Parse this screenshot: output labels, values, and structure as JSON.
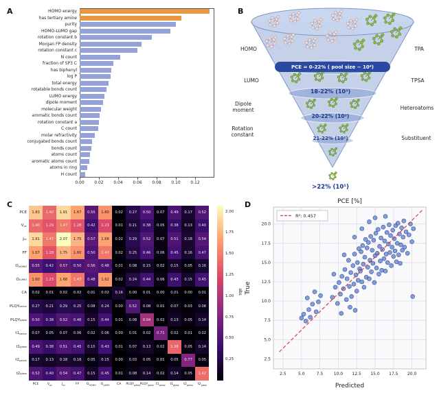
{
  "panels": {
    "a": "A",
    "b": "B",
    "c": "C",
    "d": "D"
  },
  "chart_data": [
    {
      "id": "feature-importance",
      "type": "bar",
      "orientation": "horizontal",
      "categories": [
        "HOMO energy",
        "has tertiary amine",
        "purity",
        "HOMO-LUMO gap",
        "rotation constant b",
        "Morgan FP density",
        "rotation constant c",
        "N count",
        "fraction of SP3 C",
        "has biphenyl",
        "log P",
        "total energy",
        "rotatable bonds count",
        "LUMO energy",
        "dipole moment",
        "molecular weight",
        "aromatic bonds count",
        "rotation constant a",
        "C count",
        "molar refractivity",
        "conjugated bonds count",
        "bonds count",
        "atoms count",
        "aromatic atoms count",
        "atoms in ring",
        "H count"
      ],
      "values": [
        0.135,
        0.106,
        0.1,
        0.094,
        0.075,
        0.064,
        0.06,
        0.042,
        0.035,
        0.033,
        0.032,
        0.03,
        0.028,
        0.026,
        0.024,
        0.022,
        0.021,
        0.02,
        0.019,
        0.016,
        0.013,
        0.012,
        0.011,
        0.01,
        0.008,
        0.006
      ],
      "highlight_count": 2,
      "highlight_color": "#e8993f",
      "bar_color": "#94a2d9",
      "xticks": [
        0.0,
        0.02,
        0.04,
        0.06,
        0.08,
        0.1,
        0.12
      ],
      "xlim": [
        0,
        0.14
      ]
    },
    {
      "id": "correlation-heatmap",
      "type": "heatmap",
      "labels": [
        "PCE",
        "V_oc",
        "J_sc",
        "FF",
        "O_HOMO",
        "O_LUMO",
        "CA",
        "PLQY_perov",
        "PLQY_glass",
        "t1_perov",
        "t1_glass",
        "t2_perov",
        "t2_glass"
      ],
      "matrix": [
        [
          1.83,
          1.4,
          1.91,
          1.67,
          0.55,
          1.6,
          0.02,
          0.27,
          0.5,
          0.07,
          0.49,
          0.17,
          0.52
        ],
        [
          1.4,
          1.29,
          1.47,
          1.28,
          0.42,
          1.23,
          0.01,
          0.21,
          0.38,
          0.05,
          0.38,
          0.13,
          0.4
        ],
        [
          1.91,
          1.47,
          2.07,
          1.75,
          0.57,
          1.68,
          0.02,
          0.29,
          0.52,
          0.07,
          0.51,
          0.18,
          0.54
        ],
        [
          1.67,
          1.28,
          1.75,
          1.6,
          0.5,
          1.47,
          0.02,
          0.25,
          0.46,
          0.06,
          0.45,
          0.16,
          0.47
        ],
        [
          0.55,
          0.42,
          0.57,
          0.5,
          0.56,
          0.48,
          0.01,
          0.08,
          0.15,
          0.02,
          0.15,
          0.05,
          0.16
        ],
        [
          1.6,
          1.23,
          1.68,
          1.47,
          0.48,
          1.62,
          0.02,
          0.24,
          0.44,
          0.06,
          0.43,
          0.15,
          0.45
        ],
        [
          0.02,
          0.01,
          0.02,
          0.02,
          0.01,
          0.02,
          0.16,
          0.0,
          0.01,
          0.0,
          0.01,
          0.0,
          0.01
        ],
        [
          0.27,
          0.21,
          0.29,
          0.25,
          0.08,
          0.24,
          0.0,
          0.52,
          0.08,
          0.01,
          0.07,
          0.03,
          0.08
        ],
        [
          0.5,
          0.38,
          0.52,
          0.46,
          0.15,
          0.44,
          0.01,
          0.08,
          0.94,
          0.02,
          0.13,
          0.05,
          0.14
        ],
        [
          0.07,
          0.05,
          0.07,
          0.06,
          0.02,
          0.06,
          0.0,
          0.01,
          0.02,
          0.71,
          0.02,
          0.01,
          0.02
        ],
        [
          0.49,
          0.38,
          0.51,
          0.45,
          0.15,
          0.43,
          0.01,
          0.07,
          0.13,
          0.02,
          1.38,
          0.05,
          0.14
        ],
        [
          0.17,
          0.13,
          0.18,
          0.16,
          0.05,
          0.15,
          0.0,
          0.03,
          0.05,
          0.01,
          0.05,
          0.77,
          0.05
        ],
        [
          0.52,
          0.4,
          0.54,
          0.47,
          0.15,
          0.45,
          0.01,
          0.08,
          0.14,
          0.02,
          0.14,
          0.05,
          1.42
        ]
      ],
      "vmin": 0,
      "vmax": 2.07,
      "colorbar": {
        "label": "abs",
        "ticks": [
          0.25,
          0.5,
          0.75,
          1.0,
          1.25,
          1.5,
          1.75,
          2.0
        ]
      }
    },
    {
      "id": "parity-plot",
      "type": "scatter",
      "title": "PCE [%]",
      "xlabel": "Predicted",
      "ylabel": "True",
      "legend": "R²: 0.457",
      "point_color": "#5b79c7",
      "line_color": "#e03b3b",
      "xticks": [
        2.5,
        5.0,
        7.5,
        10.0,
        12.5,
        15.0,
        17.5,
        20.0
      ],
      "yticks": [
        2.5,
        5.0,
        7.5,
        10.0,
        12.5,
        15.0,
        17.5,
        20.0
      ],
      "xlim": [
        1.2,
        21.9
      ],
      "ylim": [
        1.2,
        22.2
      ],
      "fit_line": {
        "x1": 2.0,
        "y1": 3.4,
        "x2": 21.4,
        "y2": 21.8
      },
      "points": [
        [
          5.0,
          7.8
        ],
        [
          5.3,
          8.3
        ],
        [
          5.6,
          7.4
        ],
        [
          6.0,
          8.9
        ],
        [
          6.2,
          7.9
        ],
        [
          6.5,
          9.6
        ],
        [
          5.8,
          10.4
        ],
        [
          7.0,
          8.6
        ],
        [
          7.3,
          9.9
        ],
        [
          7.6,
          10.7
        ],
        [
          6.8,
          11.2
        ],
        [
          9.2,
          10.5
        ],
        [
          9.6,
          11.8
        ],
        [
          9.9,
          9.7
        ],
        [
          10.1,
          12.4
        ],
        [
          10.3,
          10.9
        ],
        [
          10.4,
          8.4
        ],
        [
          10.5,
          13.2
        ],
        [
          10.7,
          11.6
        ],
        [
          10.9,
          14.1
        ],
        [
          11.1,
          10.2
        ],
        [
          11.2,
          12.9
        ],
        [
          11.4,
          15.3
        ],
        [
          11.5,
          11.9
        ],
        [
          11.6,
          9.2
        ],
        [
          11.7,
          13.7
        ],
        [
          11.8,
          10.6
        ],
        [
          12.0,
          14.6
        ],
        [
          12.1,
          12.2
        ],
        [
          12.2,
          16.1
        ],
        [
          12.3,
          8.8
        ],
        [
          12.4,
          13.4
        ],
        [
          12.5,
          11.3
        ],
        [
          12.6,
          15.0
        ],
        [
          12.7,
          12.7
        ],
        [
          12.8,
          16.8
        ],
        [
          12.9,
          14.2
        ],
        [
          13.0,
          13.9
        ],
        [
          13.1,
          16.4
        ],
        [
          13.2,
          12.5
        ],
        [
          13.3,
          17.2
        ],
        [
          13.4,
          14.8
        ],
        [
          13.5,
          11.8
        ],
        [
          13.6,
          15.7
        ],
        [
          13.7,
          18.0
        ],
        [
          13.8,
          13.1
        ],
        [
          13.9,
          16.9
        ],
        [
          14.0,
          14.4
        ],
        [
          14.1,
          17.6
        ],
        [
          14.2,
          12.9
        ],
        [
          14.3,
          15.3
        ],
        [
          14.4,
          18.4
        ],
        [
          14.5,
          13.8
        ],
        [
          14.6,
          16.6
        ],
        [
          14.7,
          14.9
        ],
        [
          14.8,
          17.9
        ],
        [
          14.9,
          12.4
        ],
        [
          15.0,
          15.9
        ],
        [
          15.1,
          18.8
        ],
        [
          15.2,
          14.3
        ],
        [
          15.3,
          16.2
        ],
        [
          15.4,
          19.3
        ],
        [
          15.5,
          13.5
        ],
        [
          15.6,
          17.1
        ],
        [
          15.7,
          15.2
        ],
        [
          15.8,
          18.2
        ],
        [
          15.9,
          14.0
        ],
        [
          16.0,
          16.7
        ],
        [
          16.1,
          19.6
        ],
        [
          16.2,
          15.5
        ],
        [
          16.3,
          17.8
        ],
        [
          16.4,
          13.9
        ],
        [
          16.5,
          16.1
        ],
        [
          16.6,
          18.9
        ],
        [
          16.7,
          15.0
        ],
        [
          16.8,
          17.4
        ],
        [
          16.9,
          19.9
        ],
        [
          17.0,
          16.3
        ],
        [
          17.1,
          18.5
        ],
        [
          17.2,
          14.6
        ],
        [
          17.3,
          17.0
        ],
        [
          17.4,
          19.2
        ],
        [
          17.5,
          15.8
        ],
        [
          17.6,
          18.1
        ],
        [
          17.7,
          16.5
        ],
        [
          17.8,
          19.8
        ],
        [
          17.9,
          15.1
        ],
        [
          18.0,
          17.5
        ],
        [
          18.1,
          20.1
        ],
        [
          18.2,
          16.0
        ],
        [
          18.3,
          18.7
        ],
        [
          18.4,
          14.9
        ],
        [
          18.5,
          17.3
        ],
        [
          18.6,
          19.5
        ],
        [
          18.7,
          16.6
        ],
        [
          18.8,
          18.3
        ],
        [
          18.9,
          20.4
        ],
        [
          19.0,
          17.0
        ],
        [
          19.2,
          19.0
        ],
        [
          19.4,
          16.2
        ],
        [
          19.6,
          18.6
        ],
        [
          19.8,
          20.0
        ],
        [
          20.0,
          17.7
        ],
        [
          20.2,
          19.4
        ],
        [
          15.0,
          20.8
        ],
        [
          16.4,
          21.0
        ],
        [
          14.2,
          20.3
        ],
        [
          20.1,
          10.6
        ],
        [
          9.4,
          13.5
        ],
        [
          10.8,
          16.0
        ],
        [
          13.2,
          19.4
        ],
        [
          12.2,
          18.3
        ]
      ]
    }
  ],
  "funnel": {
    "stages": [
      {
        "label": "PCE = 0-22% ( pool size ~ 10⁴)"
      },
      {
        "label": "18-22% (10³)"
      },
      {
        "label": "20-22% (10²)"
      },
      {
        "label": "21-22% (10²)"
      },
      {
        "label": ">22% (10¹)"
      }
    ],
    "left": [
      "HOMO",
      "LUMO",
      "Dipole moment",
      "Rotation constant"
    ],
    "right": [
      "TPA",
      "TPSA",
      "Heteroatoms",
      "Substituent"
    ]
  }
}
